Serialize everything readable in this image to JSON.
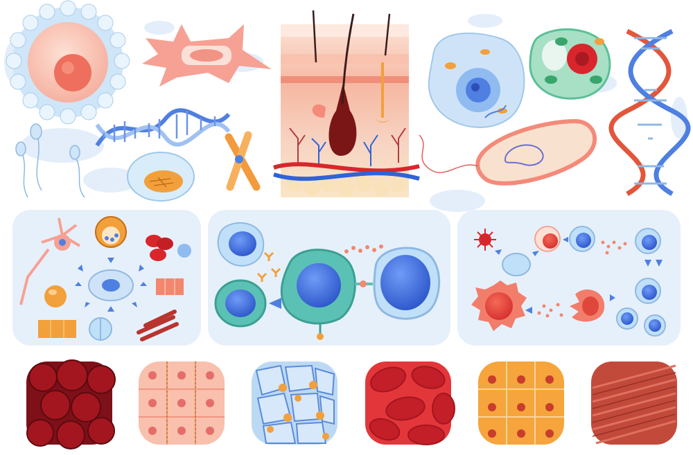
{
  "illustration": {
    "subject": "biology-cells-set",
    "colors": {
      "panel": "#e6f0fa",
      "blob": "#e3eefa",
      "red_dark": "#7d1019",
      "red": "#d8262c",
      "pink": "#f7b6a4",
      "blue": "#3f6fe0",
      "light_blue": "#bfe0f8",
      "teal": "#5cc1b5",
      "orange": "#f2a03b",
      "cream": "#f8e9c4"
    },
    "top_row": [
      {
        "name": "egg-cell"
      },
      {
        "name": "nerve-cell"
      },
      {
        "name": "dna-strand-small"
      },
      {
        "name": "fat-cell"
      },
      {
        "name": "chromosome"
      },
      {
        "name": "sperm-cells"
      },
      {
        "name": "skin-cross-section"
      },
      {
        "name": "animal-cell"
      },
      {
        "name": "plant-cell"
      },
      {
        "name": "bacterium"
      },
      {
        "name": "dna-double-helix"
      }
    ],
    "panels": [
      {
        "name": "stem-cell-differentiation"
      },
      {
        "name": "immune-cell-interaction"
      },
      {
        "name": "immune-response-cycle"
      }
    ],
    "tissues": [
      {
        "name": "blood-tissue-dark"
      },
      {
        "name": "epithelial-tissue"
      },
      {
        "name": "adipose-tissue"
      },
      {
        "name": "red-blood-cells-tissue"
      },
      {
        "name": "cuboidal-tissue"
      },
      {
        "name": "muscle-tissue"
      }
    ]
  }
}
